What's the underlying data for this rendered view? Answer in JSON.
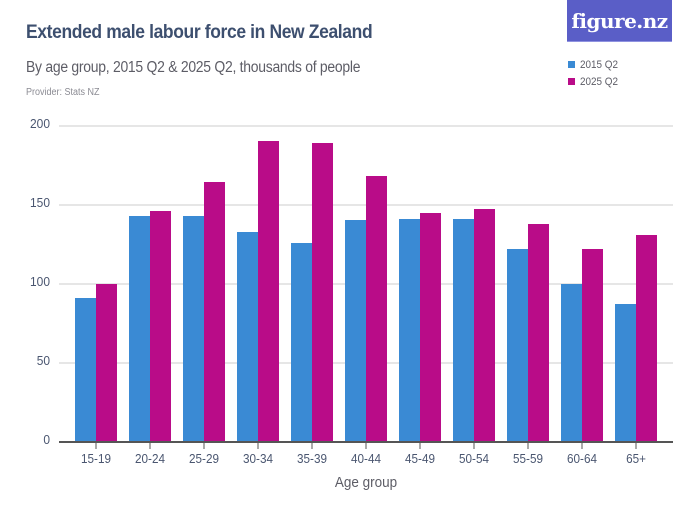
{
  "header": {
    "title": "Extended male labour force in New Zealand",
    "subtitle": "By age group, 2015 Q2 & 2025 Q2, thousands of people",
    "provider": "Provider: Stats NZ",
    "logo": "figure.nz"
  },
  "legend": [
    {
      "label": "2015 Q2",
      "color": "#3a8ad4"
    },
    {
      "label": "2025 Q2",
      "color": "#b90c88"
    }
  ],
  "axes": {
    "y_ticks": [
      "0",
      "50",
      "100",
      "150",
      "200"
    ],
    "x_label": "Age group"
  },
  "chart_data": {
    "type": "bar",
    "title": "Extended male labour force in New Zealand",
    "subtitle": "By age group, 2015 Q2 & 2025 Q2, thousands of people",
    "xlabel": "Age group",
    "ylabel": "",
    "ylim": [
      0,
      200
    ],
    "yticks": [
      0,
      50,
      100,
      150,
      200
    ],
    "grid": true,
    "legend_position": "top-right",
    "categories": [
      "15-19",
      "20-24",
      "25-29",
      "30-34",
      "35-39",
      "40-44",
      "45-49",
      "50-54",
      "55-59",
      "60-64",
      "65+"
    ],
    "series": [
      {
        "name": "2015 Q2",
        "color": "#3a8ad4",
        "values": [
          91,
          143,
          143,
          133,
          126,
          140,
          141,
          141,
          122,
          100,
          87
        ]
      },
      {
        "name": "2025 Q2",
        "color": "#b90c88",
        "values": [
          100,
          146,
          164,
          190,
          189,
          168,
          145,
          147,
          138,
          122,
          131
        ]
      }
    ]
  }
}
